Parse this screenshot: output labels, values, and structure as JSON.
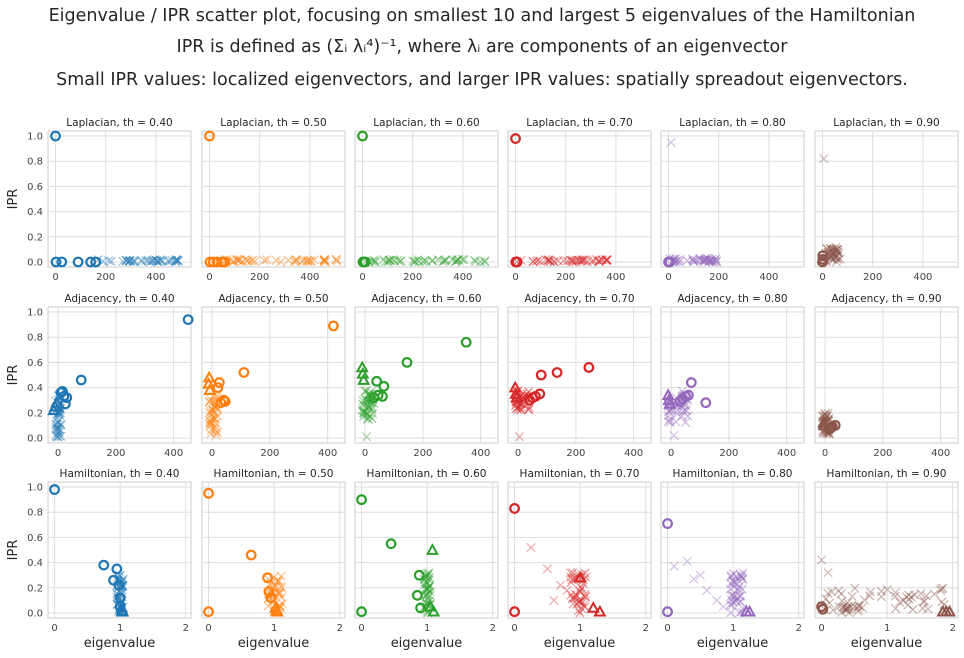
{
  "figure": {
    "title_line1": "Eigenvalue / IPR scatter plot, focusing on smallest 10 and largest 5 eigenvalues of the Hamiltonian",
    "title_line2": "IPR is defined as (Σᵢ λᵢ⁴)⁻¹, where λᵢ are components of an eigenvector",
    "title_line3": "Small IPR values: localized eigenvectors, and larger IPR values: spatially spreadout eigenvectors."
  },
  "colors": {
    "0.40": "#1f77b4",
    "0.50": "#ff7f0e",
    "0.60": "#2ca02c",
    "0.70": "#d62728",
    "0.80": "#9467bd",
    "0.90": "#8c564b"
  },
  "rows": [
    {
      "label": "Laplacian",
      "ylabel": "IPR",
      "xticks": [
        0,
        200,
        400
      ],
      "xlim": [
        -30,
        540
      ],
      "yticks": [
        0.0,
        0.2,
        0.4,
        0.6,
        0.8,
        1.0
      ],
      "ylim": [
        -0.04,
        1.04
      ]
    },
    {
      "label": "Adjacency",
      "ylabel": "IPR",
      "xticks": [
        0,
        200,
        400
      ],
      "xlim": [
        -35,
        460
      ],
      "yticks": [
        0.0,
        0.2,
        0.4,
        0.6,
        0.8,
        1.0
      ],
      "ylim": [
        -0.04,
        1.04
      ]
    },
    {
      "label": "Hamiltonian",
      "ylabel": "IPR",
      "xlabel": "eigenvalue",
      "xticks": [
        0,
        1,
        2
      ],
      "xlim": [
        -0.1,
        2.08
      ],
      "yticks": [
        0.0,
        0.2,
        0.4,
        0.6,
        0.8,
        1.0
      ],
      "ylim": [
        -0.04,
        1.04
      ]
    }
  ],
  "chart_data": [
    {
      "type": "scatter",
      "title": "Laplacian, th = 0.40",
      "th": "0.40",
      "row": 0,
      "smallest": [
        [
          0,
          1.0
        ],
        [
          2,
          0.0
        ],
        [
          25,
          0.0
        ],
        [
          90,
          0.0
        ],
        [
          140,
          0.0
        ],
        [
          160,
          0.0
        ]
      ],
      "largest": [],
      "bulk": {
        "x": [
          170,
          510
        ],
        "y": [
          0.0,
          0.02
        ],
        "n": 40
      }
    },
    {
      "type": "scatter",
      "title": "Laplacian, th = 0.50",
      "th": "0.50",
      "row": 0,
      "smallest": [
        [
          0,
          1.0
        ],
        [
          2,
          0.0
        ],
        [
          15,
          0.0
        ],
        [
          30,
          0.0
        ],
        [
          50,
          0.0
        ],
        [
          60,
          0.0
        ]
      ],
      "largest": [],
      "bulk": {
        "x": [
          60,
          510
        ],
        "y": [
          0.0,
          0.02
        ],
        "n": 45
      }
    },
    {
      "type": "scatter",
      "title": "Laplacian, th = 0.60",
      "th": "0.60",
      "row": 0,
      "smallest": [
        [
          0,
          1.0
        ],
        [
          2,
          0.0
        ],
        [
          5,
          0.0
        ],
        [
          10,
          0.0
        ]
      ],
      "largest": [],
      "bulk": {
        "x": [
          10,
          490
        ],
        "y": [
          0.0,
          0.02
        ],
        "n": 45
      }
    },
    {
      "type": "scatter",
      "title": "Laplacian, th = 0.70",
      "th": "0.70",
      "row": 0,
      "smallest": [
        [
          0,
          0.98
        ],
        [
          1,
          0.0
        ],
        [
          3,
          0.0
        ],
        [
          6,
          0.0
        ]
      ],
      "largest": [],
      "bulk": {
        "x": [
          5,
          380
        ],
        "y": [
          0.0,
          0.02
        ],
        "n": 45
      }
    },
    {
      "type": "scatter",
      "title": "Laplacian, th = 0.80",
      "th": "0.80",
      "row": 0,
      "smallest": [
        [
          0,
          0.0
        ],
        [
          2,
          0.0
        ],
        [
          5,
          0.0
        ]
      ],
      "largest": [],
      "bulk": {
        "x": [
          5,
          200
        ],
        "y": [
          0.0,
          0.03
        ],
        "n": 40
      },
      "extra_x": [
        [
          10,
          0.95
        ]
      ]
    },
    {
      "type": "scatter",
      "title": "Laplacian, th = 0.90",
      "th": "0.90",
      "row": 0,
      "smallest": [
        [
          0,
          0.0
        ],
        [
          1,
          0.05
        ],
        [
          2,
          0.02
        ]
      ],
      "largest": [],
      "bulk": {
        "x": [
          0,
          70
        ],
        "y": [
          0.0,
          0.12
        ],
        "n": 40
      },
      "extra_x": [
        [
          5,
          0.82
        ]
      ]
    },
    {
      "type": "scatter",
      "title": "Adjacency, th = 0.40",
      "th": "0.40",
      "row": 1,
      "smallest": [
        [
          450,
          0.94
        ],
        [
          80,
          0.46
        ],
        [
          15,
          0.37
        ],
        [
          20,
          0.33
        ],
        [
          30,
          0.32
        ],
        [
          25,
          0.27
        ],
        [
          10,
          0.36
        ]
      ],
      "largest": [
        [
          -5,
          0.28
        ],
        [
          -10,
          0.25
        ],
        [
          -15,
          0.22
        ]
      ],
      "bulk": {
        "x": [
          -10,
          10
        ],
        "y": [
          0.0,
          0.35
        ],
        "n": 40
      }
    },
    {
      "type": "scatter",
      "title": "Adjacency, th = 0.50",
      "th": "0.50",
      "row": 1,
      "smallest": [
        [
          420,
          0.89
        ],
        [
          110,
          0.52
        ],
        [
          25,
          0.44
        ],
        [
          20,
          0.4
        ],
        [
          40,
          0.3
        ],
        [
          45,
          0.29
        ],
        [
          30,
          0.28
        ]
      ],
      "largest": [
        [
          -10,
          0.48
        ],
        [
          -12,
          0.43
        ],
        [
          -8,
          0.38
        ]
      ],
      "bulk": {
        "x": [
          -10,
          20
        ],
        "y": [
          0.02,
          0.34
        ],
        "n": 40
      }
    },
    {
      "type": "scatter",
      "title": "Adjacency, th = 0.60",
      "th": "0.60",
      "row": 1,
      "smallest": [
        [
          350,
          0.76
        ],
        [
          145,
          0.6
        ],
        [
          65,
          0.41
        ],
        [
          40,
          0.45
        ],
        [
          60,
          0.33
        ],
        [
          45,
          0.34
        ],
        [
          30,
          0.32
        ]
      ],
      "largest": [
        [
          -10,
          0.56
        ],
        [
          -8,
          0.51
        ],
        [
          -5,
          0.46
        ]
      ],
      "bulk": {
        "x": [
          -10,
          30
        ],
        "y": [
          0.15,
          0.38
        ],
        "n": 40
      },
      "extra_x": [
        [
          5,
          0.01
        ]
      ]
    },
    {
      "type": "scatter",
      "title": "Adjacency, th = 0.70",
      "th": "0.70",
      "row": 1,
      "smallest": [
        [
          245,
          0.56
        ],
        [
          135,
          0.52
        ],
        [
          80,
          0.5
        ],
        [
          75,
          0.35
        ],
        [
          60,
          0.33
        ],
        [
          50,
          0.32
        ],
        [
          40,
          0.3
        ]
      ],
      "largest": [
        [
          -10,
          0.4
        ],
        [
          -8,
          0.35
        ],
        [
          -5,
          0.32
        ]
      ],
      "bulk": {
        "x": [
          -10,
          40
        ],
        "y": [
          0.22,
          0.38
        ],
        "n": 40
      },
      "extra_x": [
        [
          5,
          0.01
        ]
      ]
    },
    {
      "type": "scatter",
      "title": "Adjacency, th = 0.80",
      "th": "0.80",
      "row": 1,
      "smallest": [
        [
          120,
          0.28
        ],
        [
          70,
          0.44
        ],
        [
          60,
          0.34
        ],
        [
          50,
          0.33
        ],
        [
          40,
          0.31
        ],
        [
          30,
          0.29
        ]
      ],
      "largest": [
        [
          -10,
          0.34
        ],
        [
          -8,
          0.3
        ],
        [
          -5,
          0.27
        ]
      ],
      "bulk": {
        "x": [
          -10,
          60
        ],
        "y": [
          0.12,
          0.38
        ],
        "n": 40
      },
      "extra_x": [
        [
          10,
          0.02
        ]
      ]
    },
    {
      "type": "scatter",
      "title": "Adjacency, th = 0.90",
      "th": "0.90",
      "row": 1,
      "smallest": [
        [
          35,
          0.1
        ],
        [
          25,
          0.09
        ],
        [
          20,
          0.08
        ],
        [
          15,
          0.07
        ]
      ],
      "largest": [
        [
          -5,
          0.12
        ],
        [
          -3,
          0.1
        ]
      ],
      "bulk": {
        "x": [
          -10,
          15
        ],
        "y": [
          0.03,
          0.2
        ],
        "n": 40
      }
    },
    {
      "type": "scatter",
      "title": "Hamiltonian, th = 0.40",
      "th": "0.40",
      "row": 2,
      "smallest": [
        [
          0.0,
          0.98
        ],
        [
          0.75,
          0.38
        ],
        [
          0.9,
          0.26
        ],
        [
          0.95,
          0.35
        ],
        [
          0.98,
          0.22
        ],
        [
          1.0,
          0.12
        ],
        [
          1.0,
          0.05
        ]
      ],
      "largest": [
        [
          1.02,
          0.04
        ],
        [
          1.03,
          0.02
        ],
        [
          1.04,
          0.01
        ]
      ],
      "bulk": {
        "x": [
          0.95,
          1.05
        ],
        "y": [
          0.0,
          0.3
        ],
        "n": 40
      }
    },
    {
      "type": "scatter",
      "title": "Hamiltonian, th = 0.50",
      "th": "0.50",
      "row": 2,
      "smallest": [
        [
          0.0,
          0.95
        ],
        [
          0.0,
          0.01
        ],
        [
          0.65,
          0.46
        ],
        [
          0.9,
          0.28
        ],
        [
          0.92,
          0.17
        ],
        [
          0.95,
          0.12
        ]
      ],
      "largest": [
        [
          1.02,
          0.04
        ],
        [
          1.04,
          0.02
        ],
        [
          1.05,
          0.01
        ]
      ],
      "bulk": {
        "x": [
          0.9,
          1.12
        ],
        "y": [
          0.0,
          0.3
        ],
        "n": 40
      }
    },
    {
      "type": "scatter",
      "title": "Hamiltonian, th = 0.60",
      "th": "0.60",
      "row": 2,
      "smallest": [
        [
          0.0,
          0.9
        ],
        [
          0.0,
          0.01
        ],
        [
          0.45,
          0.55
        ],
        [
          0.88,
          0.3
        ],
        [
          0.85,
          0.14
        ],
        [
          0.9,
          0.04
        ]
      ],
      "largest": [
        [
          1.08,
          0.5
        ],
        [
          1.05,
          0.05
        ],
        [
          1.1,
          0.01
        ]
      ],
      "bulk": {
        "x": [
          0.95,
          1.05
        ],
        "y": [
          0.0,
          0.32
        ],
        "n": 40
      }
    },
    {
      "type": "scatter",
      "title": "Hamiltonian, th = 0.70",
      "th": "0.70",
      "row": 2,
      "smallest": [
        [
          0.0,
          0.83
        ],
        [
          0.0,
          0.01
        ]
      ],
      "largest": [
        [
          1.0,
          0.28
        ],
        [
          1.2,
          0.04
        ],
        [
          1.3,
          0.01
        ]
      ],
      "bulk": {
        "x": [
          0.85,
          1.1
        ],
        "y": [
          0.0,
          0.33
        ],
        "n": 40
      },
      "extra_x": [
        [
          0.25,
          0.52
        ],
        [
          0.5,
          0.35
        ],
        [
          0.7,
          0.22
        ],
        [
          0.6,
          0.1
        ],
        [
          0.8,
          0.18
        ]
      ]
    },
    {
      "type": "scatter",
      "title": "Hamiltonian, th = 0.80",
      "th": "0.80",
      "row": 2,
      "smallest": [
        [
          0.0,
          0.71
        ],
        [
          0.0,
          0.01
        ]
      ],
      "largest": [
        [
          1.2,
          0.01
        ],
        [
          1.25,
          0.01
        ]
      ],
      "bulk": {
        "x": [
          0.95,
          1.15
        ],
        "y": [
          0.0,
          0.32
        ],
        "n": 40
      },
      "extra_x": [
        [
          0.1,
          0.37
        ],
        [
          0.3,
          0.41
        ],
        [
          0.4,
          0.27
        ],
        [
          0.6,
          0.18
        ],
        [
          0.75,
          0.1
        ],
        [
          0.85,
          0.05
        ],
        [
          0.5,
          0.3
        ]
      ]
    },
    {
      "type": "scatter",
      "title": "Hamiltonian, th = 0.90",
      "th": "0.90",
      "row": 2,
      "smallest": [
        [
          0.0,
          0.05
        ],
        [
          0.02,
          0.03
        ]
      ],
      "largest": [
        [
          1.85,
          0.01
        ],
        [
          1.9,
          0.01
        ],
        [
          1.95,
          0.01
        ]
      ],
      "bulk": {
        "x": [
          0.0,
          1.9
        ],
        "y": [
          0.0,
          0.2
        ],
        "n": 60
      },
      "extra_x": [
        [
          0.0,
          0.42
        ],
        [
          0.1,
          0.32
        ]
      ]
    }
  ]
}
